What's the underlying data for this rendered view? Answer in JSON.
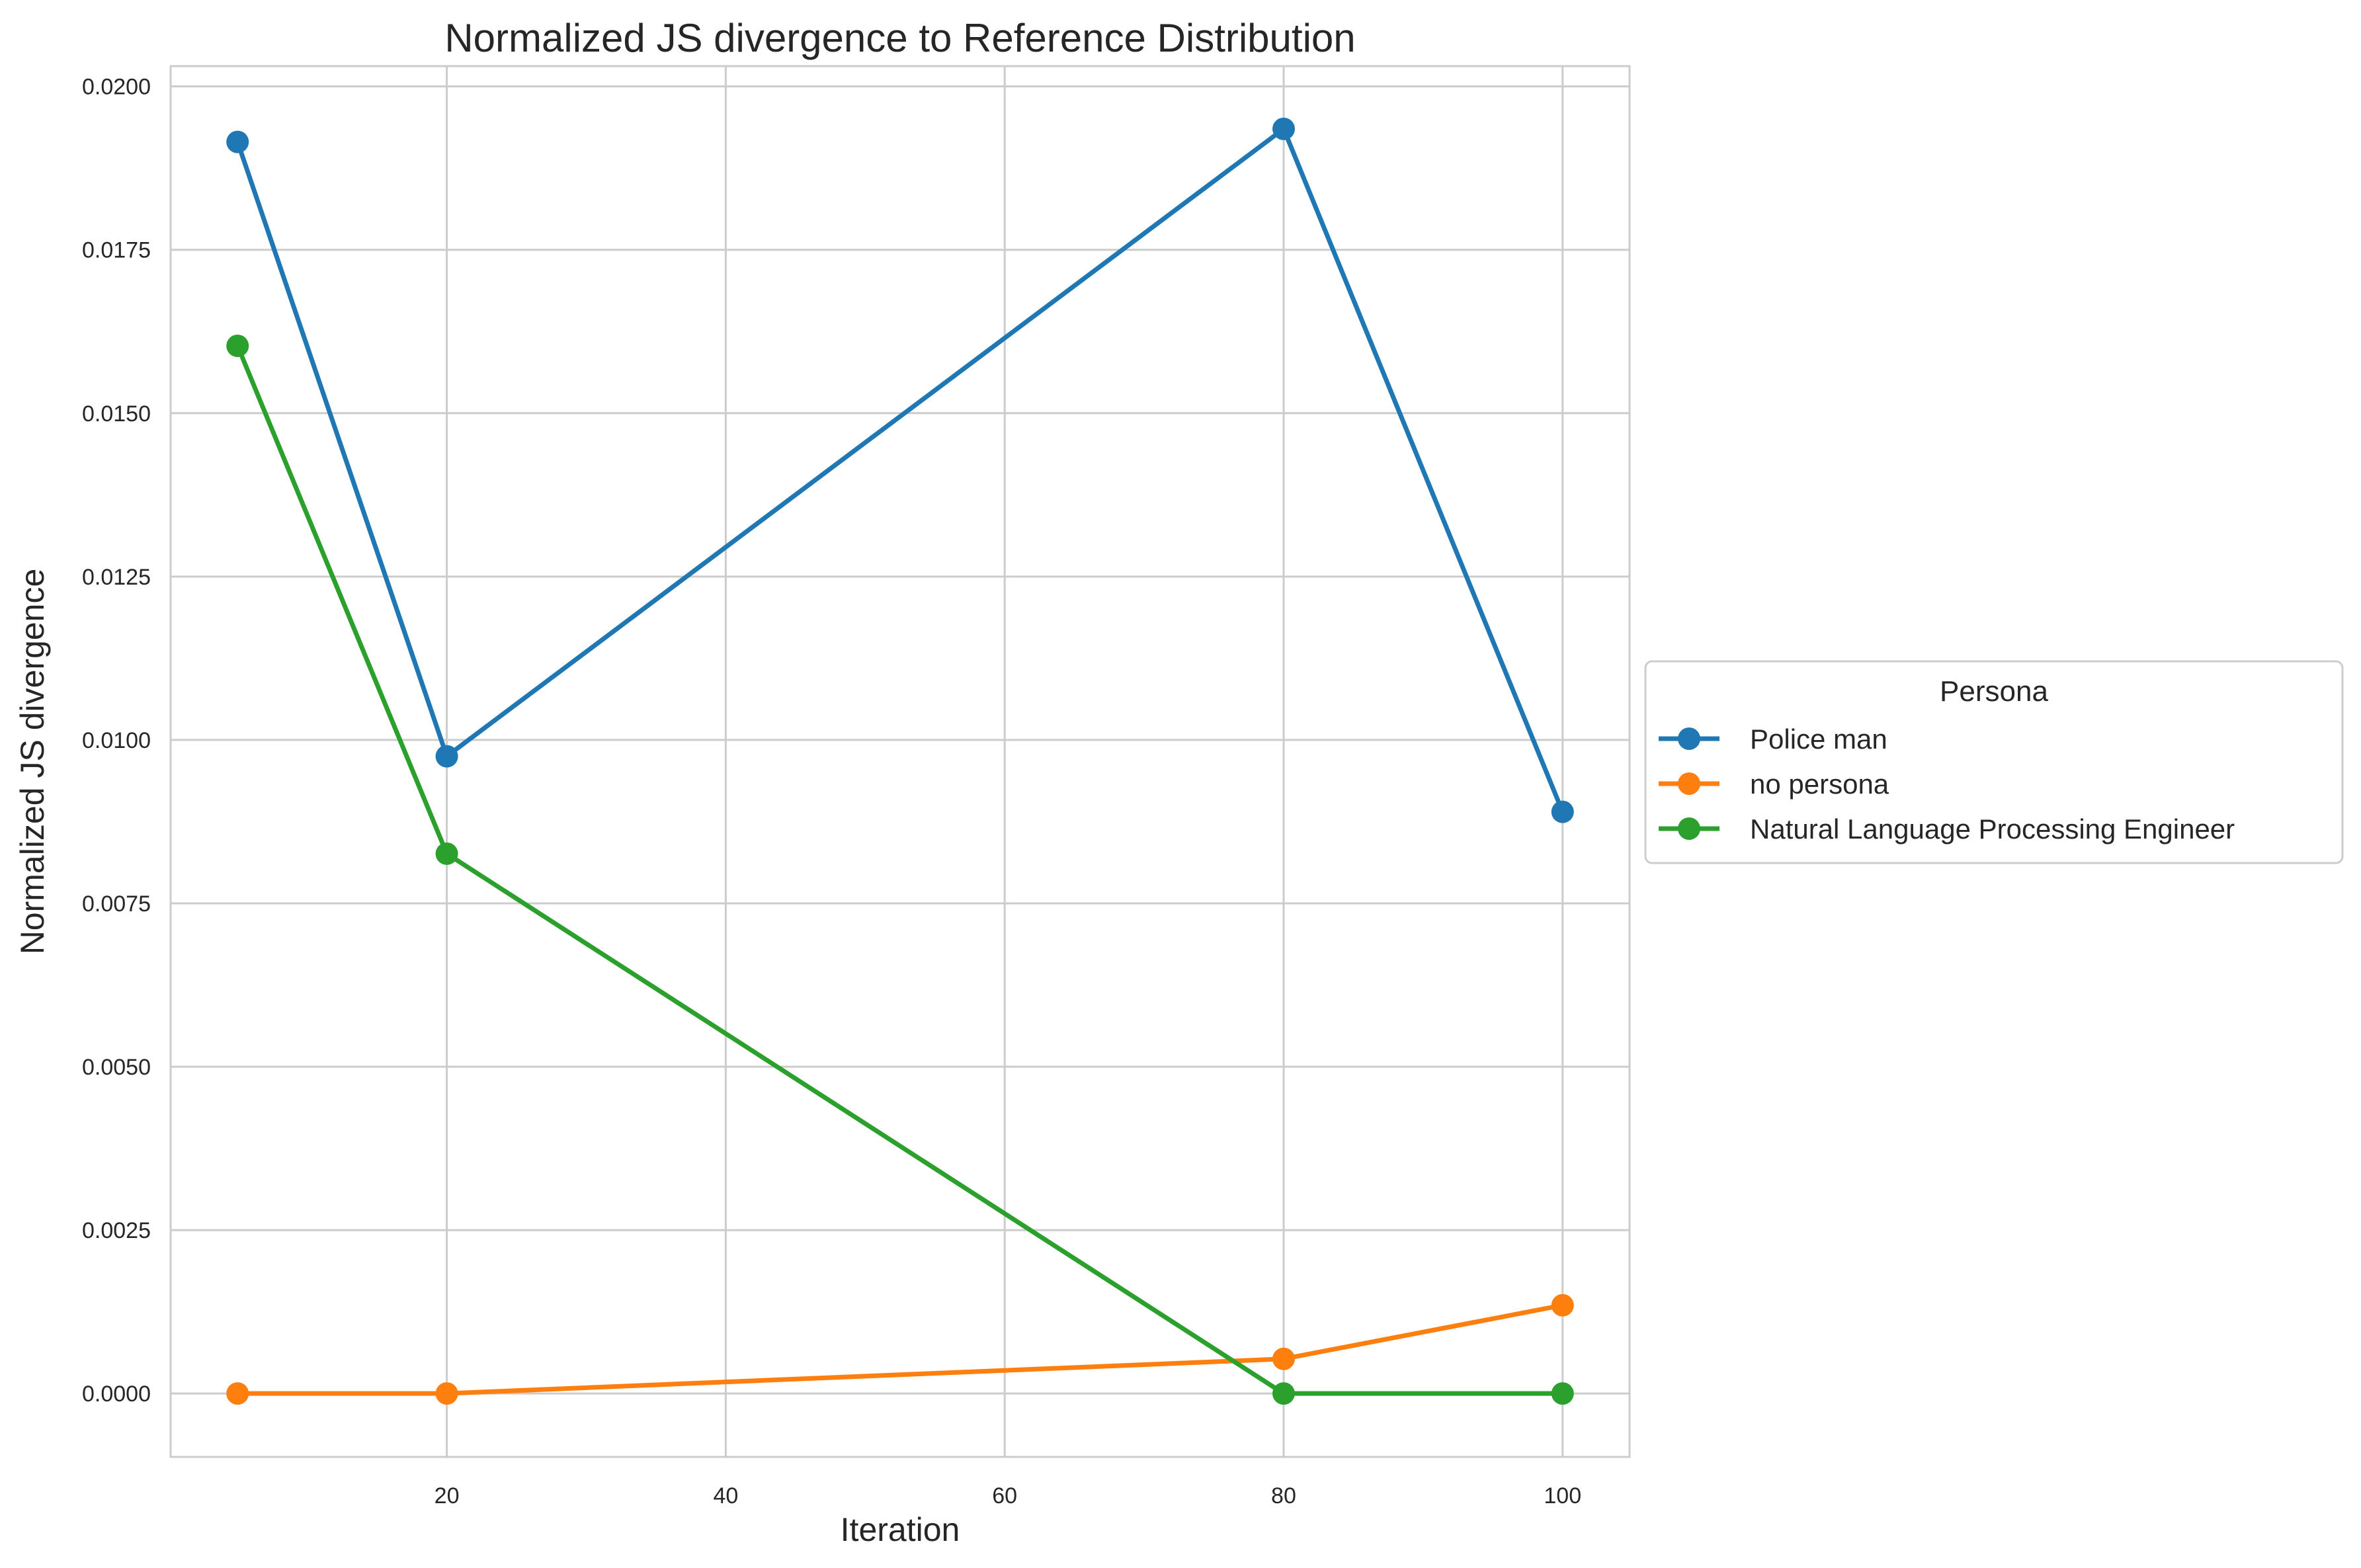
{
  "chart_data": {
    "type": "line",
    "title": "Normalized JS divergence to Reference Distribution",
    "xlabel": "Iteration",
    "ylabel": "Normalized JS divergence",
    "xlim": [
      0.2,
      104.8
    ],
    "ylim": [
      -0.00097,
      0.02031
    ],
    "xticks": [
      20,
      40,
      60,
      80,
      100
    ],
    "xtick_labels": [
      "20",
      "40",
      "60",
      "80",
      "100"
    ],
    "yticks": [
      0.0,
      0.0025,
      0.005,
      0.0075,
      0.01,
      0.0125,
      0.015,
      0.0175,
      0.02
    ],
    "ytick_labels": [
      "0.0000",
      "0.0025",
      "0.0050",
      "0.0075",
      "0.0100",
      "0.0125",
      "0.0150",
      "0.0175",
      "0.0200"
    ],
    "grid": true,
    "legend": {
      "title": "Persona",
      "placement": "center-right outside"
    },
    "series": [
      {
        "name": "Police man",
        "color": "#1f77b4",
        "x": [
          5,
          20,
          80,
          100
        ],
        "y": [
          0.01915,
          0.00975,
          0.01935,
          0.0089
        ]
      },
      {
        "name": "no persona",
        "color": "#ff7f0e",
        "x": [
          5,
          20,
          80,
          100
        ],
        "y": [
          0.0,
          0.0,
          0.00053,
          0.00135
        ]
      },
      {
        "name": "Natural Language Processing Engineer",
        "color": "#2ca02c",
        "x": [
          5,
          20,
          80,
          100
        ],
        "y": [
          0.01603,
          0.00826,
          0.0,
          0.0
        ]
      }
    ]
  }
}
